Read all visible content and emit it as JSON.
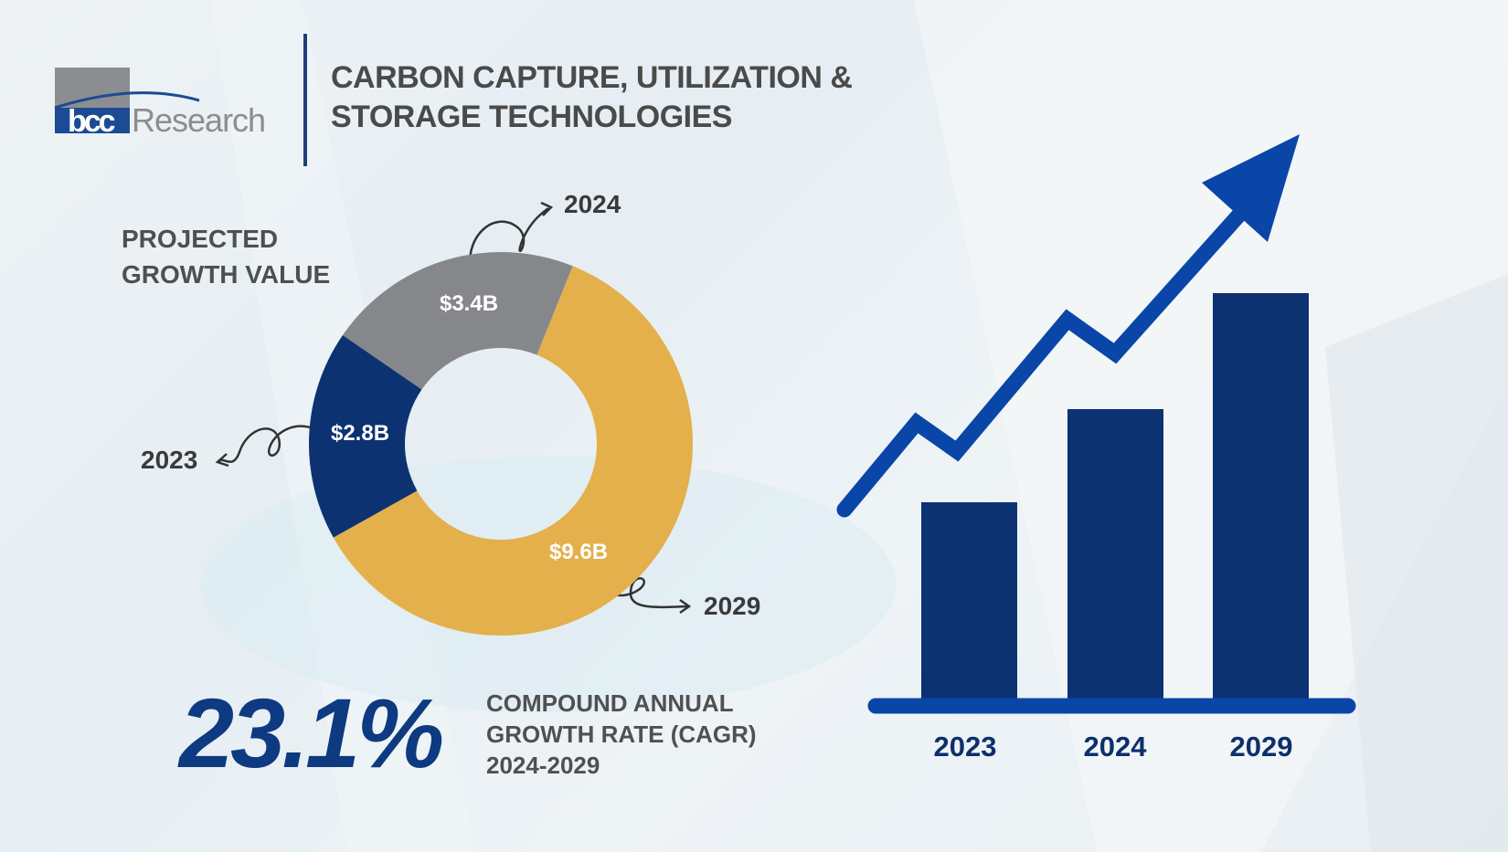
{
  "brand": {
    "logo_text": "bccResearch"
  },
  "header": {
    "title_line1": "CARBON CAPTURE, UTILIZATION &",
    "title_line2": "STORAGE TECHNOLOGIES"
  },
  "section": {
    "line1": "PROJECTED",
    "line2": "GROWTH VALUE"
  },
  "colors": {
    "navy": "#0d3272",
    "gray": "#85878b",
    "gold": "#e3b04b",
    "accent_blue": "#0a46a8"
  },
  "chart_data": [
    {
      "type": "pie",
      "variant": "donut",
      "categories": [
        "2023",
        "2024",
        "2029"
      ],
      "values": [
        2.8,
        3.4,
        9.6
      ],
      "unit": "$B",
      "data_labels": [
        "$2.8B",
        "$3.4B",
        "$9.6B"
      ],
      "colors": [
        "#0d3272",
        "#85878b",
        "#e3b04b"
      ]
    },
    {
      "type": "bar",
      "categories": [
        "2023",
        "2024",
        "2029"
      ],
      "trend_arrow": true,
      "bar_color": "#0d3272"
    }
  ],
  "cagr": {
    "value": "23.1%",
    "line1": "COMPOUND ANNUAL",
    "line2": "GROWTH RATE (CAGR)",
    "line3": "2024-2029"
  }
}
